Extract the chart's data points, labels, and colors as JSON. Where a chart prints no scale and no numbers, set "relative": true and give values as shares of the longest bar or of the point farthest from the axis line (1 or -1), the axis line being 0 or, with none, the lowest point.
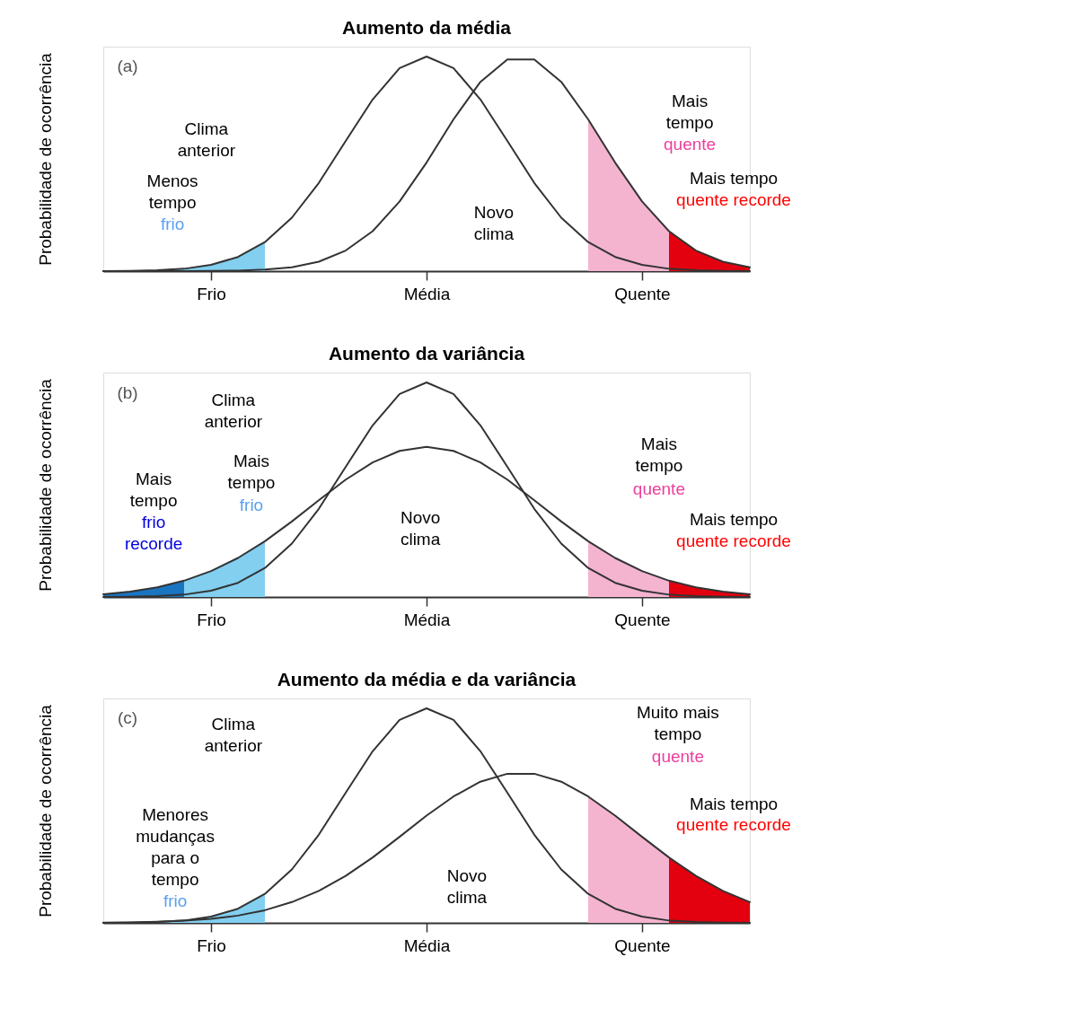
{
  "chart_data": [
    {
      "type": "line",
      "title": "Aumento da média",
      "ylabel": "Probabilidade de ocorrência",
      "relative": true,
      "categories": [
        null,
        null,
        null,
        null,
        "Frio",
        null,
        null,
        null,
        null,
        null,
        null,
        null,
        "Média",
        null,
        null,
        null,
        null,
        null,
        null,
        null,
        "Quente",
        null,
        null,
        null,
        null
      ],
      "series": [
        {
          "type": "area",
          "color": "#82cff0",
          "values": [
            0,
            0.001,
            0.004,
            0.011,
            0.029,
            0.066,
            0.135,
            null,
            null,
            null,
            null,
            null,
            null,
            null,
            null,
            null,
            null,
            null,
            null,
            null,
            null,
            null,
            null,
            null,
            null
          ]
        },
        {
          "type": "area",
          "color": "#f4b4d0",
          "values": [
            null,
            null,
            null,
            null,
            null,
            null,
            null,
            null,
            null,
            null,
            null,
            null,
            null,
            null,
            null,
            null,
            null,
            null,
            0.707,
            0.506,
            0.325,
            0.186,
            null,
            null,
            null
          ]
        },
        {
          "type": "area",
          "color": "#e3000f",
          "values": [
            null,
            null,
            null,
            null,
            null,
            null,
            null,
            null,
            null,
            null,
            null,
            null,
            null,
            null,
            null,
            null,
            null,
            null,
            null,
            null,
            null,
            0.186,
            0.096,
            0.044,
            0.018
          ]
        },
        {
          "color": "#333333",
          "values": [
            0,
            0.001,
            0.004,
            0.011,
            0.029,
            0.066,
            0.135,
            0.249,
            0.411,
            0.607,
            0.8,
            0.946,
            1,
            0.946,
            0.8,
            0.607,
            0.411,
            0.249,
            0.135,
            0.066,
            0.029,
            0.011,
            0.004,
            0.001,
            0
          ]
        },
        {
          "color": "#333333",
          "values": [
            0,
            0,
            0,
            0,
            0.001,
            0.002,
            0.007,
            0.018,
            0.044,
            0.096,
            0.186,
            0.325,
            0.506,
            0.707,
            0.882,
            0.986,
            0.986,
            0.882,
            0.707,
            0.506,
            0.325,
            0.186,
            0.096,
            0.044,
            0.018
          ]
        }
      ],
      "annotations": [
        "(a)",
        "Clima\nanterior",
        "Menos\ntempo",
        "frio",
        "Novo\nclima",
        "Mais\ntempo",
        "quente",
        "Mais tempo",
        "quente recorde"
      ]
    },
    {
      "type": "line",
      "title": "Aumento da variância",
      "ylabel": "Probabilidade de ocorrência",
      "relative": true,
      "categories": [
        null,
        null,
        null,
        null,
        "Frio",
        null,
        null,
        null,
        null,
        null,
        null,
        null,
        "Média",
        null,
        null,
        null,
        null,
        null,
        null,
        null,
        "Quente",
        null,
        null,
        null,
        null
      ],
      "series": [
        {
          "type": "area",
          "color": "#1a75c0",
          "values": [
            0.013,
            0.025,
            0.045,
            0.076,
            null,
            null,
            null,
            null,
            null,
            null,
            null,
            null,
            null,
            null,
            null,
            null,
            null,
            null,
            null,
            null,
            null,
            null,
            null,
            null,
            null
          ]
        },
        {
          "type": "area",
          "color": "#82cff0",
          "values": [
            null,
            null,
            null,
            0.076,
            0.121,
            0.182,
            0.26,
            null,
            null,
            null,
            null,
            null,
            null,
            null,
            null,
            null,
            null,
            null,
            null,
            null,
            null,
            null,
            null,
            null,
            null
          ]
        },
        {
          "type": "area",
          "color": "#f4b4d0",
          "values": [
            null,
            null,
            null,
            null,
            null,
            null,
            null,
            null,
            null,
            null,
            null,
            null,
            null,
            null,
            null,
            null,
            null,
            null,
            0.26,
            0.182,
            0.121,
            0.076,
            null,
            null,
            null
          ]
        },
        {
          "type": "area",
          "color": "#e3000f",
          "values": [
            null,
            null,
            null,
            null,
            null,
            null,
            null,
            null,
            null,
            null,
            null,
            null,
            null,
            null,
            null,
            null,
            null,
            null,
            null,
            null,
            null,
            0.076,
            0.045,
            0.025,
            0.013
          ]
        },
        {
          "color": "#333333",
          "values": [
            0,
            0.001,
            0.004,
            0.011,
            0.029,
            0.066,
            0.135,
            0.249,
            0.411,
            0.607,
            0.8,
            0.946,
            1,
            0.946,
            0.8,
            0.607,
            0.411,
            0.249,
            0.135,
            0.066,
            0.029,
            0.011,
            0.004,
            0.001,
            0
          ]
        },
        {
          "color": "#333333",
          "values": [
            0.013,
            0.025,
            0.045,
            0.076,
            0.121,
            0.182,
            0.26,
            0.352,
            0.451,
            0.547,
            0.627,
            0.681,
            0.7,
            0.681,
            0.627,
            0.547,
            0.451,
            0.352,
            0.26,
            0.182,
            0.121,
            0.076,
            0.045,
            0.025,
            0.013
          ]
        }
      ],
      "annotations": [
        "(b)",
        "Clima\nanterior",
        "Mais\ntempo",
        "frio\nrecorde",
        "Mais\ntempo",
        "frio",
        "Novo\nclima",
        "Mais\ntempo",
        "quente",
        "Mais tempo",
        "quente recorde"
      ]
    },
    {
      "type": "line",
      "title": "Aumento da média e da variância",
      "ylabel": "Probabilidade de ocorrência",
      "relative": true,
      "categories": [
        null,
        null,
        null,
        null,
        "Frio",
        null,
        null,
        null,
        null,
        null,
        null,
        null,
        "Média",
        null,
        null,
        null,
        null,
        null,
        null,
        null,
        "Quente",
        null,
        null,
        null,
        null
      ],
      "series": [
        {
          "type": "area",
          "color": "#82cff0",
          "values": [
            0,
            0.001,
            0.004,
            0.011,
            0.029,
            0.066,
            0.135,
            null,
            null,
            null,
            null,
            null,
            null,
            null,
            null,
            null,
            null,
            null,
            null,
            null,
            null,
            null,
            null,
            null,
            null
          ]
        },
        {
          "type": "area",
          "color": "#f4b4d0",
          "values": [
            null,
            null,
            null,
            null,
            null,
            null,
            null,
            null,
            null,
            null,
            null,
            null,
            null,
            null,
            null,
            null,
            null,
            null,
            0.589,
            0.5,
            0.401,
            0.305,
            null,
            null,
            null
          ]
        },
        {
          "type": "area",
          "color": "#e3000f",
          "values": [
            null,
            null,
            null,
            null,
            null,
            null,
            null,
            null,
            null,
            null,
            null,
            null,
            null,
            null,
            null,
            null,
            null,
            null,
            null,
            null,
            null,
            0.305,
            0.219,
            0.149,
            0.097
          ]
        },
        {
          "color": "#333333",
          "values": [
            0,
            0.001,
            0.004,
            0.011,
            0.029,
            0.066,
            0.135,
            0.249,
            0.411,
            0.607,
            0.8,
            0.946,
            1,
            0.946,
            0.8,
            0.607,
            0.411,
            0.249,
            0.135,
            0.066,
            0.029,
            0.011,
            0.004,
            0.001,
            0
          ]
        },
        {
          "color": "#333333",
          "values": [
            0.001,
            0.002,
            0.005,
            0.01,
            0.019,
            0.034,
            0.059,
            0.097,
            0.149,
            0.219,
            0.305,
            0.401,
            0.5,
            0.589,
            0.658,
            0.695,
            0.695,
            0.658,
            0.589,
            0.5,
            0.401,
            0.305,
            0.219,
            0.149,
            0.097
          ]
        }
      ],
      "annotations": [
        "(c)",
        "Clima\nanterior",
        "Menores\nmudanças\npara o\ntempo",
        "frio",
        "Novo\nclima",
        "Muito mais\ntempo",
        "quente",
        "Mais tempo",
        "quente recorde"
      ]
    }
  ]
}
